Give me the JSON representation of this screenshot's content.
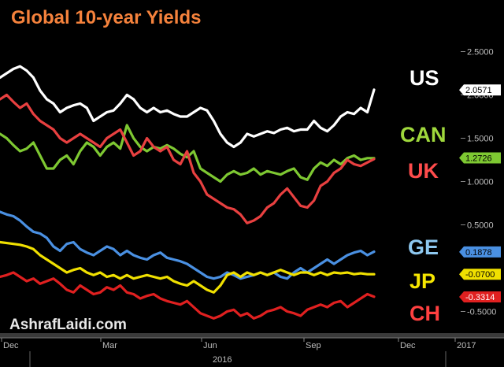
{
  "chart_data": {
    "type": "line",
    "title": "Global 10-year Yields",
    "watermark": "AshrafLaidi.com",
    "x_ticks": [
      "Dec",
      "Mar",
      "Jun",
      "Sep",
      "Dec",
      "2017"
    ],
    "x_year_label": "2016",
    "y_ticks": [
      "2.5000",
      "2.0000",
      "1.5000",
      "1.0000",
      "0.5000",
      "-0.5000"
    ],
    "ylim": [
      -0.75,
      2.75
    ],
    "grid": false,
    "colors": {
      "background": "#000000",
      "title": "#f5823c",
      "ticks": "#bdbdbd",
      "separator": "#3a3a3a"
    },
    "series": [
      {
        "name": "US",
        "label_color": "#ffffff",
        "line_color": "#ffffff",
        "flag_bg": "#ffffff",
        "flag_fg": "#000000",
        "last_value": "2.0571",
        "values": [
          2.2,
          2.25,
          2.3,
          2.33,
          2.28,
          2.2,
          2.05,
          1.95,
          1.9,
          1.8,
          1.85,
          1.88,
          1.9,
          1.85,
          1.7,
          1.75,
          1.8,
          1.82,
          1.9,
          2.0,
          1.95,
          1.85,
          1.8,
          1.85,
          1.8,
          1.82,
          1.78,
          1.75,
          1.75,
          1.8,
          1.85,
          1.82,
          1.7,
          1.55,
          1.45,
          1.4,
          1.45,
          1.55,
          1.52,
          1.55,
          1.58,
          1.56,
          1.6,
          1.62,
          1.58,
          1.6,
          1.6,
          1.7,
          1.62,
          1.58,
          1.65,
          1.75,
          1.8,
          1.78,
          1.85,
          1.8,
          2.06
        ]
      },
      {
        "name": "CAN",
        "label_color": "#9fd83c",
        "line_color": "#7ec832",
        "flag_bg": "#7ec832",
        "flag_fg": "#000000",
        "last_value": "1.2726",
        "values": [
          1.55,
          1.5,
          1.42,
          1.35,
          1.38,
          1.45,
          1.3,
          1.15,
          1.15,
          1.25,
          1.3,
          1.2,
          1.35,
          1.45,
          1.4,
          1.3,
          1.4,
          1.45,
          1.38,
          1.65,
          1.5,
          1.4,
          1.35,
          1.4,
          1.38,
          1.42,
          1.38,
          1.32,
          1.28,
          1.35,
          1.15,
          1.1,
          1.05,
          1.0,
          1.08,
          1.12,
          1.08,
          1.1,
          1.15,
          1.08,
          1.12,
          1.1,
          1.08,
          1.12,
          1.15,
          1.05,
          1.02,
          1.15,
          1.22,
          1.18,
          1.25,
          1.2,
          1.27,
          1.3,
          1.25,
          1.27,
          1.27
        ]
      },
      {
        "name": "UK",
        "label_color": "#ff4c4c",
        "line_color": "#e84040",
        "flag_bg": "",
        "flag_fg": "",
        "last_value": "",
        "values": [
          1.95,
          2.0,
          1.92,
          1.85,
          1.9,
          1.78,
          1.7,
          1.65,
          1.6,
          1.5,
          1.45,
          1.5,
          1.55,
          1.5,
          1.45,
          1.4,
          1.5,
          1.55,
          1.6,
          1.45,
          1.3,
          1.35,
          1.5,
          1.4,
          1.35,
          1.4,
          1.25,
          1.2,
          1.35,
          1.1,
          1.0,
          0.85,
          0.8,
          0.75,
          0.7,
          0.68,
          0.62,
          0.52,
          0.55,
          0.6,
          0.7,
          0.75,
          0.85,
          0.92,
          0.82,
          0.72,
          0.7,
          0.78,
          0.95,
          1.0,
          1.1,
          1.15,
          1.25,
          1.2,
          1.18,
          1.22,
          1.26
        ]
      },
      {
        "name": "GE",
        "label_color": "#8ec8f0",
        "line_color": "#4a90e2",
        "flag_bg": "#4a90e2",
        "flag_fg": "#000000",
        "last_value": "0.1878",
        "values": [
          0.65,
          0.62,
          0.6,
          0.55,
          0.48,
          0.42,
          0.4,
          0.35,
          0.25,
          0.2,
          0.28,
          0.3,
          0.22,
          0.18,
          0.15,
          0.2,
          0.25,
          0.22,
          0.15,
          0.2,
          0.15,
          0.12,
          0.1,
          0.15,
          0.18,
          0.12,
          0.1,
          0.08,
          0.05,
          0.0,
          -0.05,
          -0.1,
          -0.12,
          -0.1,
          -0.05,
          -0.08,
          -0.12,
          -0.1,
          -0.08,
          -0.05,
          -0.08,
          -0.05,
          -0.1,
          -0.12,
          -0.05,
          0.0,
          -0.05,
          0.0,
          0.05,
          0.1,
          0.05,
          0.1,
          0.15,
          0.18,
          0.2,
          0.15,
          0.19
        ]
      },
      {
        "name": "JP",
        "label_color": "#f6e600",
        "line_color": "#f0e000",
        "flag_bg": "#f0e000",
        "flag_fg": "#000000",
        "last_value": "-0.0700",
        "values": [
          0.3,
          0.29,
          0.28,
          0.27,
          0.25,
          0.22,
          0.15,
          0.1,
          0.05,
          0.0,
          -0.05,
          -0.02,
          0.0,
          -0.05,
          -0.08,
          -0.05,
          -0.1,
          -0.08,
          -0.12,
          -0.08,
          -0.12,
          -0.1,
          -0.08,
          -0.1,
          -0.12,
          -0.1,
          -0.15,
          -0.18,
          -0.2,
          -0.15,
          -0.2,
          -0.25,
          -0.28,
          -0.2,
          -0.08,
          -0.05,
          -0.1,
          -0.05,
          -0.08,
          -0.05,
          -0.08,
          -0.05,
          -0.02,
          -0.05,
          -0.08,
          -0.05,
          -0.05,
          -0.08,
          -0.05,
          -0.08,
          -0.05,
          -0.06,
          -0.05,
          -0.07,
          -0.06,
          -0.07,
          -0.07
        ]
      },
      {
        "name": "CH",
        "label_color": "#ff4040",
        "line_color": "#e02020",
        "flag_bg": "#e02020",
        "flag_fg": "#ffffff",
        "last_value": "-0.3314",
        "values": [
          -0.1,
          -0.08,
          -0.05,
          -0.1,
          -0.15,
          -0.12,
          -0.18,
          -0.15,
          -0.12,
          -0.18,
          -0.25,
          -0.28,
          -0.2,
          -0.25,
          -0.3,
          -0.28,
          -0.22,
          -0.25,
          -0.2,
          -0.28,
          -0.3,
          -0.35,
          -0.32,
          -0.3,
          -0.35,
          -0.38,
          -0.4,
          -0.42,
          -0.38,
          -0.45,
          -0.52,
          -0.55,
          -0.58,
          -0.55,
          -0.5,
          -0.48,
          -0.55,
          -0.52,
          -0.58,
          -0.55,
          -0.5,
          -0.48,
          -0.45,
          -0.5,
          -0.52,
          -0.55,
          -0.48,
          -0.45,
          -0.42,
          -0.45,
          -0.4,
          -0.38,
          -0.45,
          -0.4,
          -0.35,
          -0.3,
          -0.33
        ]
      }
    ]
  }
}
